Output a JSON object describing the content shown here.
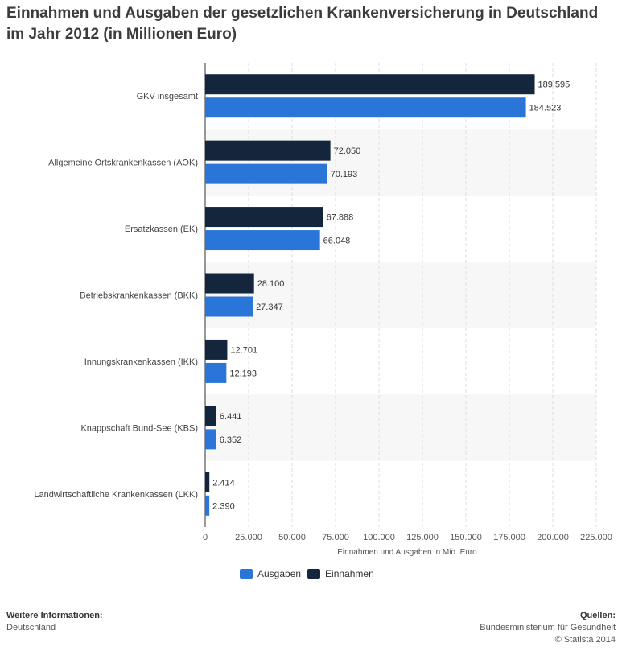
{
  "title": "Einnahmen und Ausgaben der gesetzlichen Krankenversicherung in Deutschland im Jahr 2012 (in Millionen Euro)",
  "chart_data": {
    "type": "bar",
    "orientation": "horizontal",
    "categories": [
      "GKV insgesamt",
      "Allgemeine Ortskrankenkassen (AOK)",
      "Ersatzkassen (EK)",
      "Betriebskrankenkassen (BKK)",
      "Innungskrankenkassen (IKK)",
      "Knappschaft Bund-See (KBS)",
      "Landwirtschaftliche Krankenkassen (LKK)"
    ],
    "series": [
      {
        "name": "Einnahmen",
        "color": "#14263b",
        "values": [
          189595,
          72050,
          67888,
          28100,
          12701,
          6441,
          2414
        ],
        "labels": [
          "189.595",
          "72.050",
          "67.888",
          "28.100",
          "12.701",
          "6.441",
          "2.414"
        ]
      },
      {
        "name": "Ausgaben",
        "color": "#2a76d8",
        "values": [
          184523,
          70193,
          66048,
          27347,
          12193,
          6352,
          2390
        ],
        "labels": [
          "184.523",
          "70.193",
          "66.048",
          "27.347",
          "12.193",
          "6.352",
          "2.390"
        ]
      }
    ],
    "xlabel": "Einnahmen und Ausgaben in Mio. Euro",
    "xlim": [
      0,
      225000
    ],
    "xticks": [
      0,
      25000,
      50000,
      75000,
      100000,
      125000,
      150000,
      175000,
      200000,
      225000
    ],
    "xtick_labels": [
      "0",
      "25.000",
      "50.000",
      "75.000",
      "100.000",
      "125.000",
      "150.000",
      "175.000",
      "200.000",
      "225.000"
    ],
    "legend": {
      "placement": "bottom-center",
      "order": [
        "Ausgaben",
        "Einnahmen"
      ]
    },
    "grid": true,
    "alternate_row_shading": true
  },
  "footer": {
    "left_heading": "Weitere Informationen:",
    "left_text": "Deutschland",
    "right_heading": "Quellen:",
    "right_lines": [
      "Bundesministerium für Gesundheit",
      "© Statista 2014"
    ]
  }
}
